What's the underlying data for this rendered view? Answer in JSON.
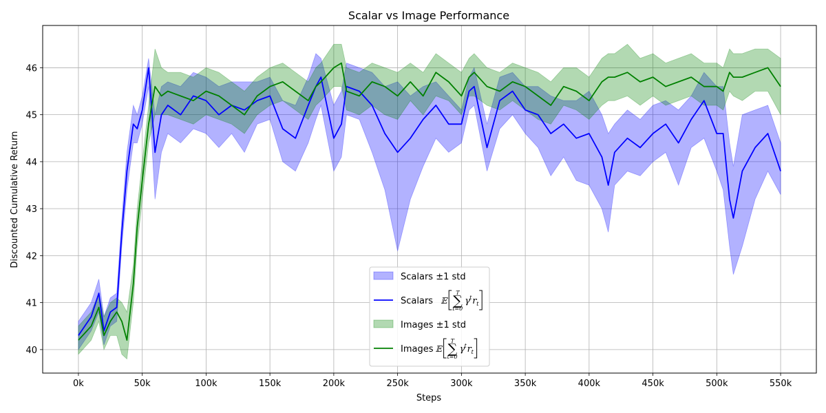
{
  "chart_data": {
    "type": "line",
    "title": "Scalar vs Image Performance",
    "xlabel": "Steps",
    "ylabel": "Discounted Cumulative Return",
    "xlim": [
      -28000,
      578000
    ],
    "ylim": [
      39.5,
      46.9
    ],
    "grid": true,
    "legend_position": "lower-center",
    "x_ticks": [
      0,
      50000,
      100000,
      150000,
      200000,
      250000,
      300000,
      350000,
      400000,
      450000,
      500000,
      550000
    ],
    "x_tick_labels": [
      "0k",
      "50k",
      "100k",
      "150k",
      "200k",
      "250k",
      "300k",
      "350k",
      "400k",
      "450k",
      "500k",
      "550k"
    ],
    "y_ticks": [
      40,
      41,
      42,
      43,
      44,
      45,
      46
    ],
    "y_tick_labels": [
      "40",
      "41",
      "42",
      "43",
      "44",
      "45",
      "46"
    ],
    "x": [
      0,
      10000,
      16000,
      20000,
      25000,
      30000,
      34000,
      38000,
      43000,
      46000,
      50000,
      55000,
      60000,
      65000,
      70000,
      80000,
      90000,
      100000,
      110000,
      120000,
      130000,
      140000,
      150000,
      160000,
      170000,
      180000,
      186000,
      190000,
      200000,
      206000,
      210000,
      220000,
      230000,
      240000,
      250000,
      260000,
      270000,
      280000,
      290000,
      300000,
      306000,
      310000,
      320000,
      330000,
      340000,
      350000,
      360000,
      370000,
      380000,
      390000,
      400000,
      410000,
      415000,
      420000,
      430000,
      440000,
      450000,
      460000,
      470000,
      480000,
      490000,
      500000,
      505000,
      510000,
      513000,
      520000,
      530000,
      540000,
      550000
    ],
    "series": [
      {
        "name": "Scalars",
        "color": "#0000ff",
        "mean": [
          40.3,
          40.7,
          41.2,
          40.4,
          40.8,
          40.9,
          42.5,
          43.8,
          44.8,
          44.7,
          45.1,
          46.0,
          44.2,
          45.0,
          45.2,
          45.0,
          45.4,
          45.3,
          45.0,
          45.2,
          45.1,
          45.3,
          45.4,
          44.7,
          44.5,
          45.2,
          45.6,
          45.8,
          44.5,
          44.8,
          45.6,
          45.5,
          45.2,
          44.6,
          44.2,
          44.5,
          44.9,
          45.2,
          44.8,
          44.8,
          45.5,
          45.6,
          44.3,
          45.3,
          45.5,
          45.1,
          45.0,
          44.6,
          44.8,
          44.5,
          44.6,
          44.1,
          43.5,
          44.2,
          44.5,
          44.3,
          44.6,
          44.8,
          44.4,
          44.9,
          45.3,
          44.6,
          44.6,
          43.2,
          42.8,
          43.8,
          44.3,
          44.6,
          43.8
        ],
        "std_low": [
          40.0,
          40.4,
          40.8,
          40.1,
          40.5,
          40.6,
          42.2,
          43.4,
          44.4,
          44.4,
          44.8,
          45.6,
          43.2,
          44.2,
          44.6,
          44.4,
          44.7,
          44.6,
          44.3,
          44.6,
          44.2,
          44.8,
          44.9,
          44.0,
          43.8,
          44.4,
          44.9,
          45.2,
          43.8,
          44.1,
          45.0,
          44.9,
          44.2,
          43.4,
          42.1,
          43.2,
          43.9,
          44.5,
          44.2,
          44.4,
          45.1,
          45.2,
          43.8,
          44.7,
          45.0,
          44.6,
          44.3,
          43.7,
          44.1,
          43.6,
          43.5,
          43.0,
          42.5,
          43.5,
          43.8,
          43.7,
          44.0,
          44.2,
          43.5,
          44.3,
          44.5,
          43.8,
          43.4,
          42.2,
          41.6,
          42.2,
          43.2,
          43.8,
          43.3
        ],
        "std_high": [
          40.6,
          41.0,
          41.5,
          40.7,
          41.1,
          41.2,
          42.8,
          44.2,
          45.2,
          45.0,
          45.4,
          46.2,
          45.0,
          45.6,
          45.7,
          45.6,
          45.9,
          45.8,
          45.6,
          45.7,
          45.7,
          45.7,
          45.8,
          45.3,
          45.2,
          45.8,
          46.3,
          46.2,
          45.2,
          45.5,
          46.1,
          46.0,
          45.9,
          45.6,
          45.7,
          45.4,
          45.6,
          45.7,
          45.4,
          45.1,
          45.8,
          46.0,
          44.8,
          45.8,
          45.9,
          45.6,
          45.6,
          45.4,
          45.3,
          45.3,
          45.5,
          45.0,
          44.6,
          44.8,
          45.1,
          44.9,
          45.2,
          45.3,
          45.1,
          45.4,
          45.9,
          45.6,
          45.6,
          44.4,
          43.9,
          45.0,
          45.1,
          45.2,
          44.4
        ]
      },
      {
        "name": "Images",
        "color": "#008000",
        "mean": [
          40.2,
          40.5,
          40.9,
          40.3,
          40.6,
          40.8,
          40.6,
          40.2,
          41.4,
          42.6,
          43.6,
          44.8,
          45.6,
          45.4,
          45.5,
          45.4,
          45.3,
          45.5,
          45.4,
          45.2,
          45.0,
          45.4,
          45.6,
          45.7,
          45.5,
          45.3,
          45.6,
          45.7,
          46.0,
          46.1,
          45.5,
          45.4,
          45.7,
          45.6,
          45.4,
          45.7,
          45.4,
          45.9,
          45.7,
          45.4,
          45.8,
          45.9,
          45.6,
          45.5,
          45.7,
          45.6,
          45.4,
          45.2,
          45.6,
          45.5,
          45.3,
          45.7,
          45.8,
          45.8,
          45.9,
          45.7,
          45.8,
          45.6,
          45.7,
          45.8,
          45.6,
          45.6,
          45.5,
          45.9,
          45.8,
          45.8,
          45.9,
          46.0,
          45.6
        ],
        "std_low": [
          39.9,
          40.2,
          40.6,
          40.0,
          40.3,
          40.3,
          39.9,
          39.8,
          41.0,
          42.2,
          43.2,
          44.4,
          45.0,
          45.0,
          45.0,
          44.9,
          44.8,
          45.0,
          44.9,
          44.8,
          44.6,
          45.0,
          45.2,
          45.3,
          45.1,
          44.9,
          45.2,
          45.3,
          45.6,
          45.6,
          45.1,
          45.0,
          45.2,
          45.0,
          44.9,
          45.3,
          45.0,
          45.4,
          45.3,
          45.0,
          45.4,
          45.4,
          45.2,
          45.1,
          45.3,
          45.1,
          44.9,
          44.8,
          45.2,
          45.1,
          44.9,
          45.2,
          45.3,
          45.3,
          45.4,
          45.2,
          45.4,
          45.2,
          45.3,
          45.4,
          45.2,
          45.2,
          45.1,
          45.5,
          45.4,
          45.3,
          45.5,
          45.5,
          45.0
        ],
        "std_high": [
          40.5,
          40.8,
          41.2,
          40.7,
          41.0,
          41.1,
          41.0,
          40.8,
          41.8,
          43.0,
          44.0,
          45.2,
          46.4,
          46.0,
          45.9,
          45.9,
          45.8,
          46.0,
          45.9,
          45.7,
          45.5,
          45.8,
          46.0,
          46.1,
          45.9,
          45.7,
          46.0,
          46.1,
          46.5,
          46.5,
          46.0,
          45.9,
          46.1,
          46.0,
          45.9,
          46.1,
          45.9,
          46.3,
          46.1,
          45.9,
          46.2,
          46.3,
          46.0,
          45.9,
          46.1,
          46.0,
          45.9,
          45.7,
          46.0,
          46.0,
          45.8,
          46.2,
          46.3,
          46.3,
          46.5,
          46.2,
          46.3,
          46.1,
          46.2,
          46.3,
          46.1,
          46.1,
          46.0,
          46.4,
          46.3,
          46.3,
          46.4,
          46.4,
          46.2
        ]
      }
    ],
    "legend": [
      {
        "label": "Scalars ±1 std",
        "kind": "band",
        "color": "#0000ff"
      },
      {
        "label": "Scalars",
        "kind": "line",
        "color": "#0000ff",
        "math": "𝔼"
      },
      {
        "label": "Images ±1 std",
        "kind": "band",
        "color": "#008000"
      },
      {
        "label": "Images",
        "kind": "line",
        "color": "#008000",
        "math": "𝔼"
      }
    ]
  }
}
